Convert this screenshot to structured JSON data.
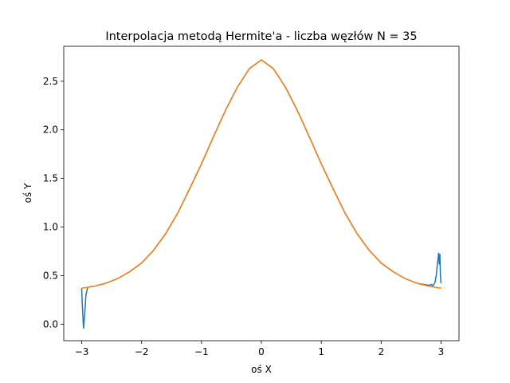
{
  "chart_data": {
    "type": "line",
    "title": "Interpolacja metodą Hermite'a - liczba węzłów N = 35",
    "xlabel": "oś X",
    "ylabel": "oś Y",
    "xlim": [
      -3.3,
      3.3
    ],
    "ylim": [
      -0.17,
      2.86
    ],
    "grid": false,
    "x_ticks": [
      {
        "value": -3,
        "label": "−3"
      },
      {
        "value": -2,
        "label": "−2"
      },
      {
        "value": -1,
        "label": "−1"
      },
      {
        "value": 0,
        "label": "0"
      },
      {
        "value": 1,
        "label": "1"
      },
      {
        "value": 2,
        "label": "2"
      },
      {
        "value": 3,
        "label": "3"
      }
    ],
    "y_ticks": [
      {
        "value": 0.0,
        "label": "0.0"
      },
      {
        "value": 0.5,
        "label": "0.5"
      },
      {
        "value": 1.0,
        "label": "1.0"
      },
      {
        "value": 1.5,
        "label": "1.5"
      },
      {
        "value": 2.0,
        "label": "2.0"
      },
      {
        "value": 2.5,
        "label": "2.5"
      }
    ],
    "series": [
      {
        "color": "#1f77b4",
        "points": [
          [
            -3.0,
            0.37
          ],
          [
            -2.99,
            0.2
          ],
          [
            -2.97,
            -0.04
          ],
          [
            -2.95,
            0.1
          ],
          [
            -2.93,
            0.3
          ],
          [
            -2.9,
            0.38
          ],
          [
            -2.8,
            0.39
          ],
          [
            -2.6,
            0.42
          ],
          [
            -2.4,
            0.47
          ],
          [
            -2.2,
            0.54
          ],
          [
            -2.0,
            0.63
          ],
          [
            -1.8,
            0.76
          ],
          [
            -1.6,
            0.93
          ],
          [
            -1.4,
            1.14
          ],
          [
            -1.2,
            1.39
          ],
          [
            -1.0,
            1.65
          ],
          [
            -0.8,
            1.93
          ],
          [
            -0.6,
            2.2
          ],
          [
            -0.4,
            2.44
          ],
          [
            -0.2,
            2.63
          ],
          [
            0.0,
            2.72
          ],
          [
            0.2,
            2.63
          ],
          [
            0.4,
            2.44
          ],
          [
            0.6,
            2.2
          ],
          [
            0.8,
            1.93
          ],
          [
            1.0,
            1.65
          ],
          [
            1.2,
            1.39
          ],
          [
            1.4,
            1.14
          ],
          [
            1.6,
            0.93
          ],
          [
            1.8,
            0.76
          ],
          [
            2.0,
            0.63
          ],
          [
            2.2,
            0.54
          ],
          [
            2.4,
            0.47
          ],
          [
            2.6,
            0.42
          ],
          [
            2.7,
            0.41
          ],
          [
            2.8,
            0.4
          ],
          [
            2.84,
            0.41
          ],
          [
            2.86,
            0.39
          ],
          [
            2.88,
            0.41
          ],
          [
            2.9,
            0.43
          ],
          [
            2.92,
            0.5
          ],
          [
            2.94,
            0.62
          ],
          [
            2.96,
            0.73
          ],
          [
            2.97,
            0.62
          ],
          [
            2.98,
            0.72
          ],
          [
            2.99,
            0.5
          ],
          [
            3.0,
            0.42
          ]
        ]
      },
      {
        "color": "#ff7f0e",
        "points": [
          [
            -3.0,
            0.37
          ],
          [
            -2.8,
            0.39
          ],
          [
            -2.6,
            0.42
          ],
          [
            -2.4,
            0.47
          ],
          [
            -2.2,
            0.54
          ],
          [
            -2.0,
            0.63
          ],
          [
            -1.8,
            0.76
          ],
          [
            -1.6,
            0.93
          ],
          [
            -1.4,
            1.14
          ],
          [
            -1.2,
            1.39
          ],
          [
            -1.0,
            1.65
          ],
          [
            -0.8,
            1.93
          ],
          [
            -0.6,
            2.2
          ],
          [
            -0.4,
            2.44
          ],
          [
            -0.2,
            2.63
          ],
          [
            0.0,
            2.72
          ],
          [
            0.2,
            2.63
          ],
          [
            0.4,
            2.44
          ],
          [
            0.6,
            2.2
          ],
          [
            0.8,
            1.93
          ],
          [
            1.0,
            1.65
          ],
          [
            1.2,
            1.39
          ],
          [
            1.4,
            1.14
          ],
          [
            1.6,
            0.93
          ],
          [
            1.8,
            0.76
          ],
          [
            2.0,
            0.63
          ],
          [
            2.2,
            0.54
          ],
          [
            2.4,
            0.47
          ],
          [
            2.6,
            0.42
          ],
          [
            2.8,
            0.39
          ],
          [
            3.0,
            0.37
          ]
        ]
      }
    ]
  }
}
